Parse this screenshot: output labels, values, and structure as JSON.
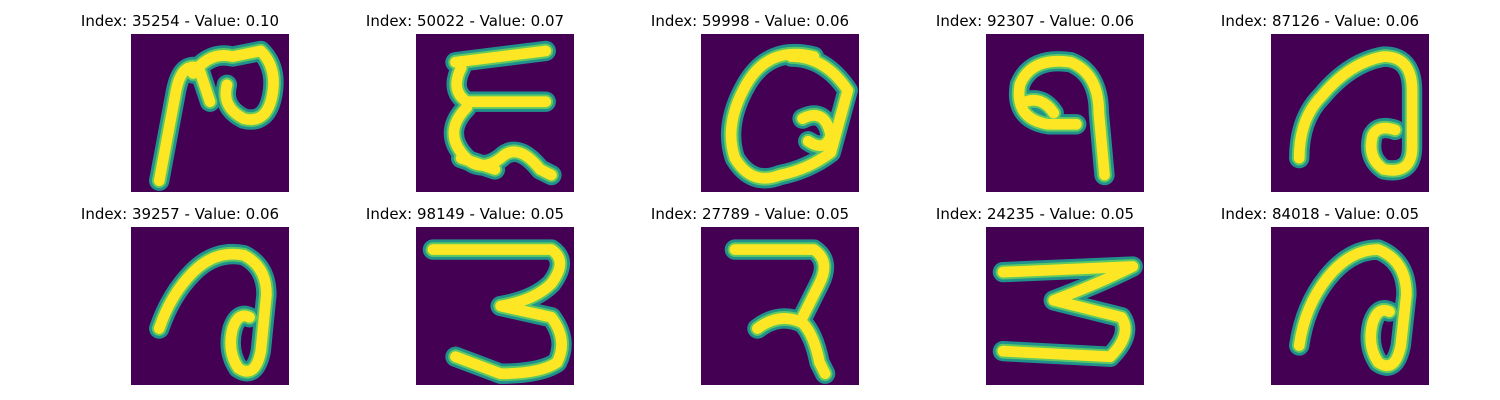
{
  "colors": {
    "background": "#440154",
    "stroke_edge": "#21918c",
    "stroke_core": "#fde725",
    "stroke_mid": "#5ec962"
  },
  "panels": [
    {
      "title": "Index: 35254 - Value: 0.10",
      "index": 35254,
      "value": 0.1,
      "glyph": "ra-like"
    },
    {
      "title": "Index: 50022 - Value: 0.07",
      "index": 50022,
      "value": 0.07,
      "glyph": "epsilon-like"
    },
    {
      "title": "Index: 59998 - Value: 0.06",
      "index": 59998,
      "value": 0.06,
      "glyph": "loop-like"
    },
    {
      "title": "Index: 92307 - Value: 0.06",
      "index": 92307,
      "value": 0.06,
      "glyph": "nine-like"
    },
    {
      "title": "Index: 87126 - Value: 0.06",
      "index": 87126,
      "value": 0.06,
      "glyph": "hook-like"
    },
    {
      "title": "Index: 39257 - Value: 0.06",
      "index": 39257,
      "value": 0.06,
      "glyph": "hook-like-2"
    },
    {
      "title": "Index: 98149 - Value: 0.05",
      "index": 98149,
      "value": 0.05,
      "glyph": "three-like"
    },
    {
      "title": "Index: 27789 - Value: 0.05",
      "index": 27789,
      "value": 0.05,
      "glyph": "ra-stroke"
    },
    {
      "title": "Index: 24235 - Value: 0.05",
      "index": 24235,
      "value": 0.05,
      "glyph": "zigzag"
    },
    {
      "title": "Index: 84018 - Value: 0.05",
      "index": 84018,
      "value": 0.05,
      "glyph": "hook-like-3"
    }
  ]
}
